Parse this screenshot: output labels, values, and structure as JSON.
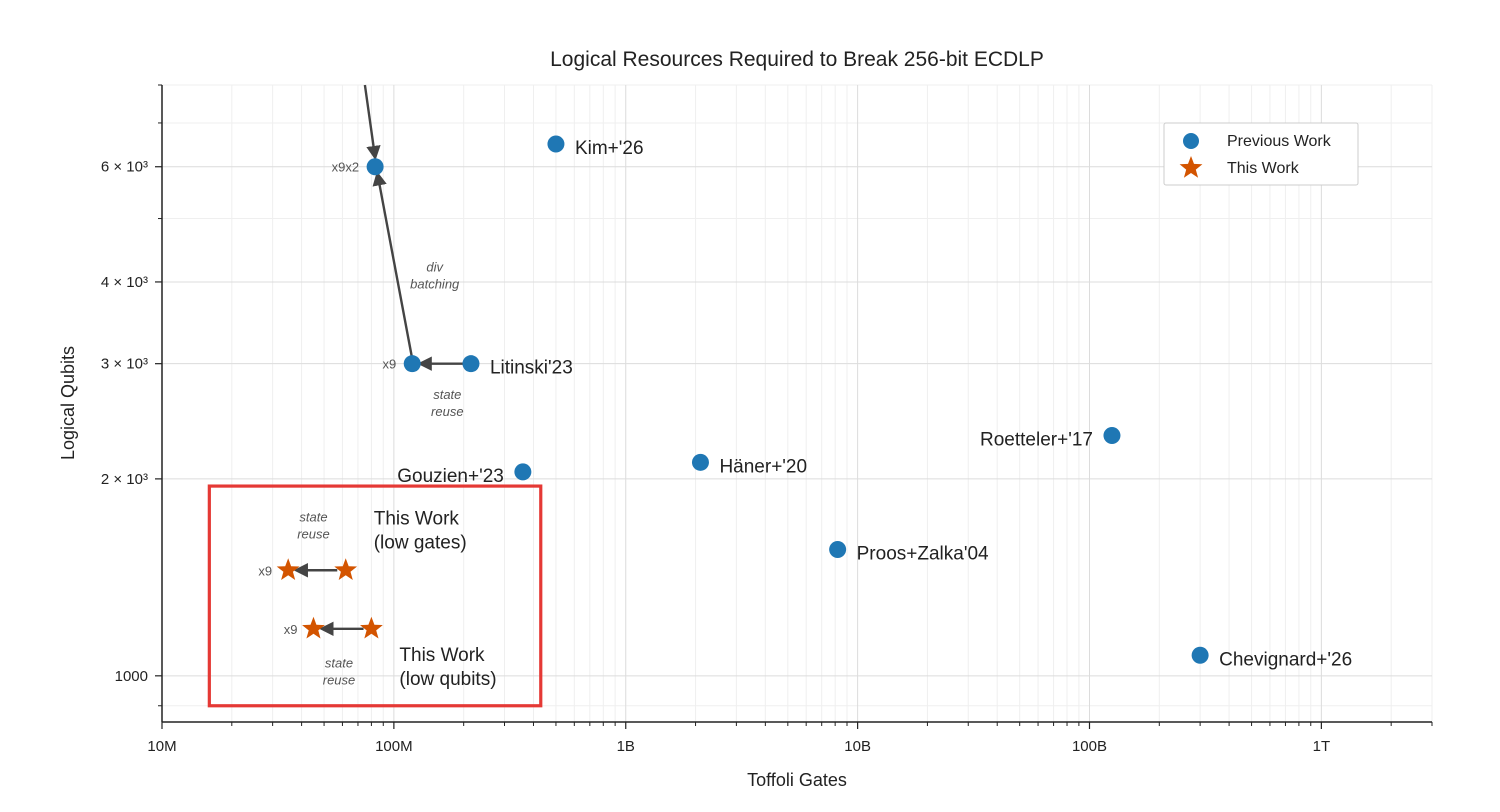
{
  "chart_data": {
    "type": "scatter",
    "title": "Logical Resources Required to Break 256-bit ECDLP",
    "xlabel": "Toffoli Gates",
    "ylabel": "Logical Qubits",
    "x_scale": "log",
    "y_scale": "log",
    "xlim": [
      10000000,
      3000000000000
    ],
    "ylim": [
      850,
      8000
    ],
    "x_ticks": [
      {
        "value": 10000000,
        "label": "10M"
      },
      {
        "value": 100000000,
        "label": "100M"
      },
      {
        "value": 1000000000,
        "label": "1B"
      },
      {
        "value": 10000000000,
        "label": "10B"
      },
      {
        "value": 100000000000,
        "label": "100B"
      },
      {
        "value": 1000000000000,
        "label": "1T"
      }
    ],
    "y_ticks": [
      {
        "value": 1000,
        "label": "1000"
      },
      {
        "value": 2000,
        "label": "2 × 10³"
      },
      {
        "value": 3000,
        "label": "3 × 10³"
      },
      {
        "value": 4000,
        "label": "4 × 10³"
      },
      {
        "value": 6000,
        "label": "6 × 10³"
      }
    ],
    "legend": {
      "position": "top-right",
      "entries": [
        {
          "name": "Previous Work",
          "marker": "circle",
          "color": "#1f77b4"
        },
        {
          "name": "This Work",
          "marker": "star",
          "color": "#d35400"
        }
      ]
    },
    "series": [
      {
        "name": "Previous Work",
        "marker": "circle",
        "color": "#1f77b4",
        "points": [
          {
            "x": 500000000,
            "y": 6500,
            "label": "Kim+'26"
          },
          {
            "x": 215000000,
            "y": 3000,
            "label": "Litinski'23"
          },
          {
            "x": 120000000,
            "y": 3000,
            "label": ""
          },
          {
            "x": 83000000,
            "y": 6000,
            "label": ""
          },
          {
            "x": 360000000,
            "y": 2050,
            "label": "Gouzien+'23"
          },
          {
            "x": 2100000000,
            "y": 2120,
            "label": "Häner+'20"
          },
          {
            "x": 8200000000,
            "y": 1560,
            "label": "Proos+Zalka'04"
          },
          {
            "x": 125000000000,
            "y": 2330,
            "label": "Roetteler+'17"
          },
          {
            "x": 300000000000,
            "y": 1075,
            "label": "Chevignard+'26"
          }
        ]
      },
      {
        "name": "This Work",
        "marker": "star",
        "color": "#d35400",
        "points": [
          {
            "x": 62000000,
            "y": 1450,
            "label": "This Work\n(low gates)"
          },
          {
            "x": 35000000,
            "y": 1450,
            "label": ""
          },
          {
            "x": 80000000,
            "y": 1180,
            "label": "This Work\n(low qubits)"
          },
          {
            "x": 45000000,
            "y": 1180,
            "label": ""
          }
        ]
      }
    ],
    "annotations": [
      {
        "text": "x9x2",
        "x": 83000000,
        "y": 6000,
        "kind": "multiplier"
      },
      {
        "text": "x9",
        "x": 120000000,
        "y": 3000,
        "kind": "multiplier"
      },
      {
        "text": "x9",
        "x": 35000000,
        "y": 1450,
        "kind": "multiplier"
      },
      {
        "text": "x9",
        "x": 45000000,
        "y": 1180,
        "kind": "multiplier"
      },
      {
        "text": "div\nbatching",
        "x": 150000000,
        "y": 4150,
        "kind": "note"
      },
      {
        "text": "state\nreuse",
        "x": 170000000,
        "y": 2650,
        "kind": "note"
      },
      {
        "text": "state\nreuse",
        "x": 45000000,
        "y": 1720,
        "kind": "note"
      },
      {
        "text": "state\nreuse",
        "x": 58000000,
        "y": 1030,
        "kind": "note"
      }
    ],
    "arrows": [
      {
        "from": [
          200000000,
          3000
        ],
        "to": [
          130000000,
          3000
        ]
      },
      {
        "from": [
          120000000,
          3050
        ],
        "to": [
          85000000,
          5850
        ]
      },
      {
        "from": [
          75000000,
          8000
        ],
        "to": [
          83000000,
          6200
        ]
      },
      {
        "from": [
          57000000,
          1450
        ],
        "to": [
          38000000,
          1450
        ]
      },
      {
        "from": [
          74000000,
          1180
        ],
        "to": [
          49000000,
          1180
        ]
      }
    ],
    "highlight_box": {
      "x_range": [
        16000000,
        430000000
      ],
      "y_range": [
        900,
        1950
      ],
      "color": "#e53935"
    }
  }
}
